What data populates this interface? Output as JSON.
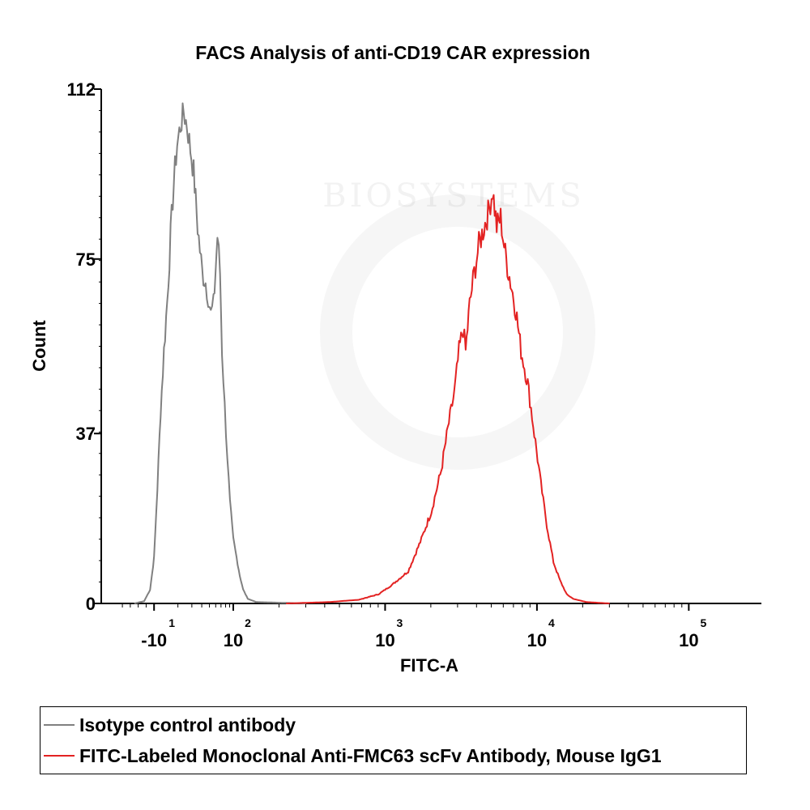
{
  "chart_data": {
    "type": "histogram-line",
    "title": "FACS Analysis of anti-CD19 CAR expression",
    "xlabel": "FITC-A",
    "ylabel": "Count",
    "ylim": [
      0,
      112
    ],
    "yticks": [
      {
        "value": 0,
        "label": "0"
      },
      {
        "value": 37,
        "label": "37"
      },
      {
        "value": 75,
        "label": "75"
      },
      {
        "value": 112,
        "label": "112"
      }
    ],
    "xlim": [
      0,
      100
    ],
    "xticks": [
      {
        "pos": 8,
        "label": "-10",
        "exponent": "1"
      },
      {
        "pos": 20,
        "label": "10",
        "exponent": "2"
      },
      {
        "pos": 43,
        "label": "10",
        "exponent": "3"
      },
      {
        "pos": 66,
        "label": "10",
        "exponent": "4"
      },
      {
        "pos": 89,
        "label": "10",
        "exponent": "5"
      }
    ],
    "series": [
      {
        "name": "Isotype control antibody",
        "color": "#808080",
        "points": [
          [
            5.0,
            0
          ],
          [
            6.5,
            0.5
          ],
          [
            7.4,
            3
          ],
          [
            8.0,
            10
          ],
          [
            8.5,
            25
          ],
          [
            9.0,
            42
          ],
          [
            9.5,
            55
          ],
          [
            10.0,
            66
          ],
          [
            10.5,
            80
          ],
          [
            11.0,
            92
          ],
          [
            11.5,
            100
          ],
          [
            12.0,
            104
          ],
          [
            12.5,
            107
          ],
          [
            13.0,
            104
          ],
          [
            13.5,
            99
          ],
          [
            14.0,
            94
          ],
          [
            14.6,
            82
          ],
          [
            15.3,
            72
          ],
          [
            15.8,
            70
          ],
          [
            16.2,
            67
          ],
          [
            16.6,
            63
          ],
          [
            17.0,
            65
          ],
          [
            17.3,
            72
          ],
          [
            17.6,
            80
          ],
          [
            18.0,
            72
          ],
          [
            18.3,
            55
          ],
          [
            18.7,
            43
          ],
          [
            19.1,
            32
          ],
          [
            19.5,
            22
          ],
          [
            20.0,
            14
          ],
          [
            20.5,
            10
          ],
          [
            21.0,
            6
          ],
          [
            21.5,
            3
          ],
          [
            22.2,
            1
          ],
          [
            23.5,
            0.3
          ],
          [
            31.0,
            0
          ]
        ]
      },
      {
        "name": "FITC-Labeled Monoclonal Anti-FMC63 scFv Antibody, Mouse IgG1",
        "color": "#e32222",
        "points": [
          [
            28.0,
            0
          ],
          [
            34.5,
            0.3
          ],
          [
            39.0,
            0.8
          ],
          [
            42.0,
            2
          ],
          [
            44.0,
            4
          ],
          [
            46.5,
            7
          ],
          [
            48.5,
            14
          ],
          [
            50.0,
            20
          ],
          [
            51.5,
            29
          ],
          [
            52.5,
            38
          ],
          [
            53.5,
            46
          ],
          [
            54.2,
            55
          ],
          [
            54.8,
            60
          ],
          [
            55.2,
            55
          ],
          [
            55.8,
            65
          ],
          [
            56.5,
            72
          ],
          [
            57.2,
            78
          ],
          [
            58.0,
            82
          ],
          [
            58.6,
            85
          ],
          [
            59.3,
            90
          ],
          [
            59.9,
            82
          ],
          [
            60.5,
            84
          ],
          [
            61.2,
            76
          ],
          [
            62.0,
            70
          ],
          [
            62.8,
            64
          ],
          [
            63.6,
            55
          ],
          [
            64.6,
            48
          ],
          [
            65.6,
            37
          ],
          [
            66.6,
            26
          ],
          [
            67.5,
            17
          ],
          [
            68.5,
            9
          ],
          [
            69.5,
            5
          ],
          [
            70.5,
            2
          ],
          [
            71.5,
            1
          ],
          [
            73.5,
            0.3
          ],
          [
            77.0,
            0
          ]
        ]
      }
    ],
    "watermark": "BIOSYSTEMS"
  },
  "legend": {
    "items": [
      {
        "label": "Isotype control antibody",
        "color": "#808080"
      },
      {
        "label": "FITC-Labeled Monoclonal Anti-FMC63 scFv Antibody, Mouse IgG1",
        "color": "#e32222"
      }
    ]
  }
}
